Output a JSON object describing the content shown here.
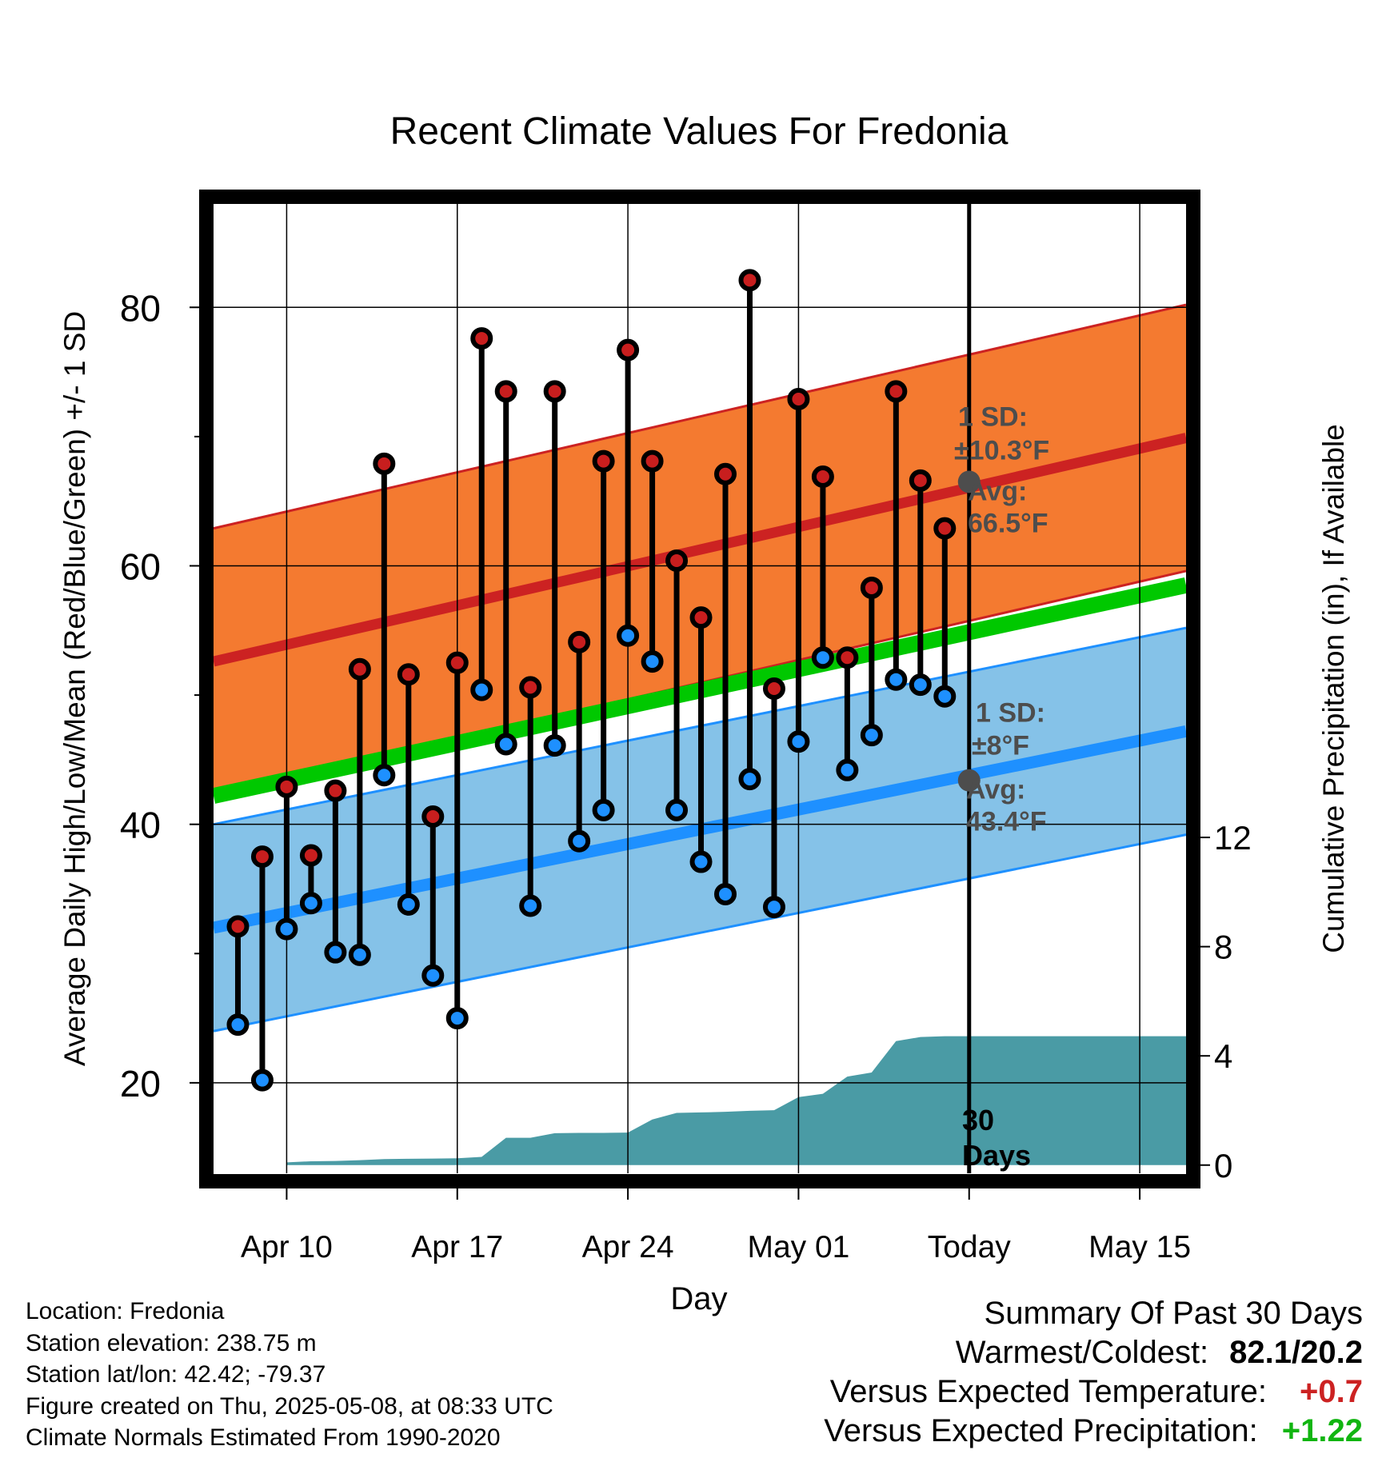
{
  "chart_data": {
    "type": "line",
    "title": "Recent Climate Values For Fredonia",
    "xlabel": "Day",
    "ylabel": "Average Daily High/Low/Mean (Red/Blue/Green) +/- 1 SD",
    "y2label": "Cumulative Precipitation (in), If Available",
    "x_ticks": [
      {
        "day": 3,
        "label": "Apr 10"
      },
      {
        "day": 10,
        "label": "Apr 17"
      },
      {
        "day": 17,
        "label": "Apr 24"
      },
      {
        "day": 24,
        "label": "May 01"
      },
      {
        "day": 31,
        "label": "Today"
      },
      {
        "day": 38,
        "label": "May 15"
      }
    ],
    "x_range_days": [
      0,
      39.9
    ],
    "x_day0": "Apr 07",
    "ylim": [
      13,
      88
    ],
    "y_ticks": [
      20,
      40,
      60,
      80
    ],
    "y_minor_ticks": [
      30,
      50,
      70
    ],
    "y2lim": [
      -0.3,
      35.2
    ],
    "y2_ticks": [
      0,
      4,
      8,
      12
    ],
    "grid": true,
    "today_day": 31,
    "normals": {
      "day_range": [
        0,
        39.9
      ],
      "high_mean": [
        52.6,
        69.9
      ],
      "low_mean": [
        32.0,
        47.2
      ],
      "avg_mean": [
        42.2,
        58.5
      ],
      "high_sd": 10.3,
      "low_sd": 8.0
    },
    "series": [
      {
        "name": "High",
        "color": "#c81e1e",
        "days": [
          1,
          2,
          3,
          4,
          5,
          6,
          7,
          8,
          9,
          10,
          11,
          12,
          13,
          14,
          15,
          16,
          17,
          18,
          19,
          20,
          21,
          22,
          23,
          24,
          25,
          26,
          27,
          28,
          29,
          30
        ],
        "values": [
          32.1,
          37.5,
          42.9,
          37.6,
          42.6,
          52.0,
          67.9,
          51.6,
          40.6,
          52.5,
          77.6,
          73.5,
          50.6,
          73.5,
          54.1,
          68.1,
          76.7,
          68.1,
          60.4,
          56.0,
          67.1,
          82.1,
          50.5,
          72.9,
          66.9,
          52.9,
          58.3,
          73.5,
          66.6,
          62.9
        ]
      },
      {
        "name": "Low",
        "color": "#1e90ff",
        "days": [
          1,
          2,
          3,
          4,
          5,
          6,
          7,
          8,
          9,
          10,
          11,
          12,
          13,
          14,
          15,
          16,
          17,
          18,
          19,
          20,
          21,
          22,
          23,
          24,
          25,
          26,
          27,
          28,
          29,
          30
        ],
        "values": [
          24.5,
          20.2,
          31.9,
          33.9,
          30.1,
          29.9,
          43.8,
          33.8,
          28.3,
          25.0,
          50.4,
          46.2,
          33.7,
          46.1,
          38.7,
          41.1,
          54.6,
          52.6,
          41.1,
          37.1,
          34.6,
          43.5,
          33.6,
          46.4,
          52.9,
          44.2,
          46.9,
          51.2,
          50.8,
          49.9
        ]
      }
    ],
    "precip": {
      "name": "Cumulative Precipitation",
      "color": "#4a9ba5",
      "days": [
        3,
        4,
        5,
        6,
        7,
        8,
        9,
        10,
        11,
        12,
        13,
        14,
        15,
        16,
        17,
        18,
        19,
        20,
        21,
        22,
        23,
        24,
        25,
        26,
        27,
        28,
        29,
        30,
        31,
        39.9
      ],
      "values": [
        0.1,
        0.14,
        0.15,
        0.18,
        0.22,
        0.23,
        0.24,
        0.25,
        0.3,
        1.0,
        1.0,
        1.17,
        1.18,
        1.18,
        1.19,
        1.67,
        1.91,
        1.93,
        1.95,
        1.99,
        2.01,
        2.49,
        2.61,
        3.24,
        3.39,
        4.54,
        4.69,
        4.72,
        4.72,
        4.72
      ]
    },
    "annotations": {
      "high_sd_label": "1 SD:",
      "high_sd_value": "±10.3°F",
      "high_avg_label": "Avg:",
      "high_avg_value": "66.5°F",
      "high_today_avg": 66.5,
      "low_sd_label": "1 SD:",
      "low_sd_value": "±8°F",
      "low_avg_label": "Avg:",
      "low_avg_value": "43.4°F",
      "low_today_avg": 43.4,
      "days_line1": "30",
      "days_line2": "Days"
    },
    "colors": {
      "high_band": "#f47a30",
      "high_line": "#cc2222",
      "low_band": "#85c2e8",
      "low_line": "#1e90ff",
      "avg_line": "#00c800",
      "annotation": "#4d4d4d"
    }
  },
  "info": {
    "location": "Location: Fredonia",
    "elevation": "Station elevation: 238.75 m",
    "latlon": "Station lat/lon: 42.42; -79.37",
    "created": "Figure created on Thu, 2025-05-08, at 08:33 UTC",
    "normals": "Climate Normals Estimated From 1990-2020"
  },
  "summary": {
    "title": "Summary Of Past 30 Days",
    "warm_cold_label": "Warmest/Coldest:",
    "warm_cold_value": "82.1/20.2",
    "temp_label": "Versus Expected Temperature:",
    "temp_value": "+0.7",
    "precip_label": "Versus Expected Precipitation:",
    "precip_value": "+1.22"
  }
}
